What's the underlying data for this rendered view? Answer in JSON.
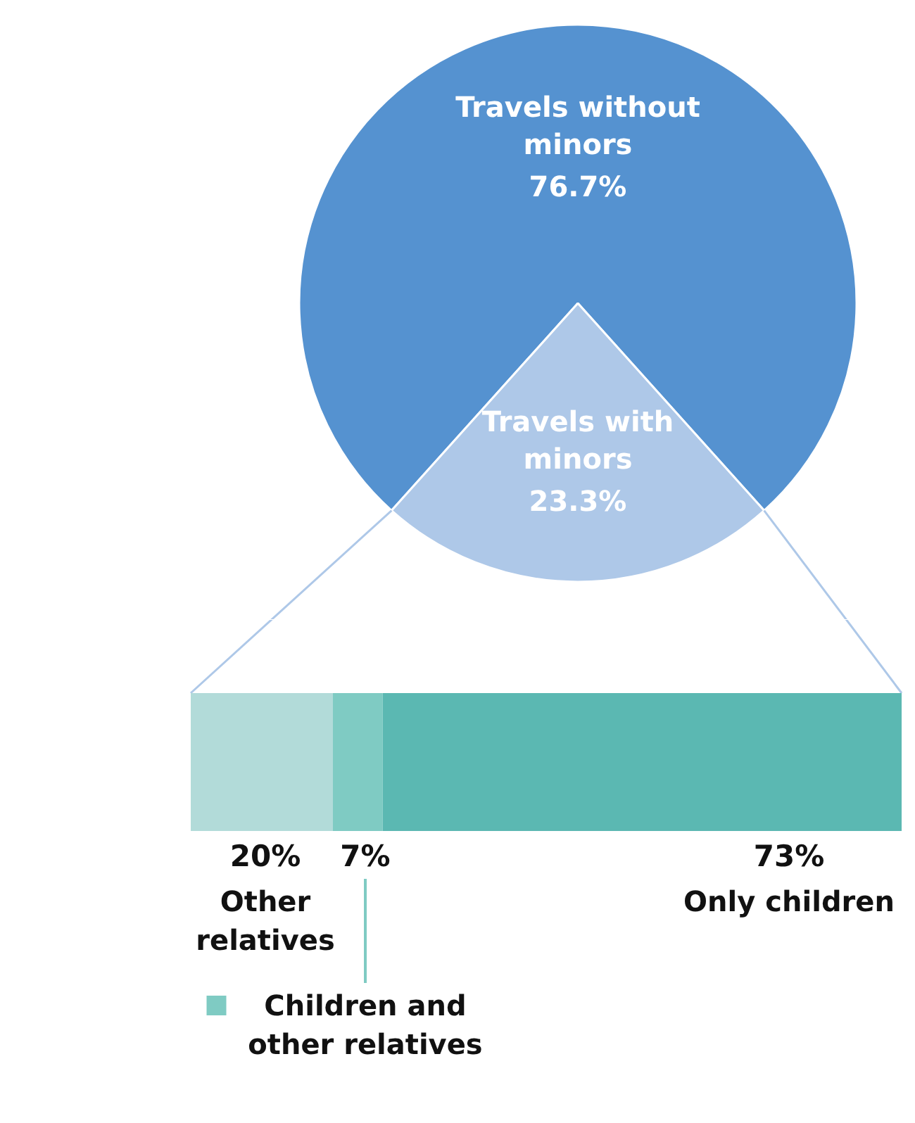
{
  "chart_data": [
    {
      "type": "pie",
      "categories": [
        "Travels without minors",
        "Travels with minors"
      ],
      "values": [
        76.7,
        23.3
      ],
      "colors": [
        "#5592d0",
        "#aec8e8"
      ],
      "value_labels": [
        "76.7%",
        "23.3%"
      ]
    },
    {
      "type": "bar",
      "orientation": "horizontal",
      "stacked": true,
      "categories": [
        null
      ],
      "series": [
        {
          "name": "Other relatives",
          "color": "#b2dbd9",
          "values": [
            20
          ],
          "value_labels": [
            "20%"
          ]
        },
        {
          "name": "Children and other relatives",
          "color": "#7fcbc3",
          "values": [
            7
          ],
          "value_labels": [
            "7%"
          ]
        },
        {
          "name": "Only children",
          "color": "#5bb8b2",
          "values": [
            73
          ],
          "value_labels": [
            "73%"
          ]
        }
      ]
    }
  ]
}
